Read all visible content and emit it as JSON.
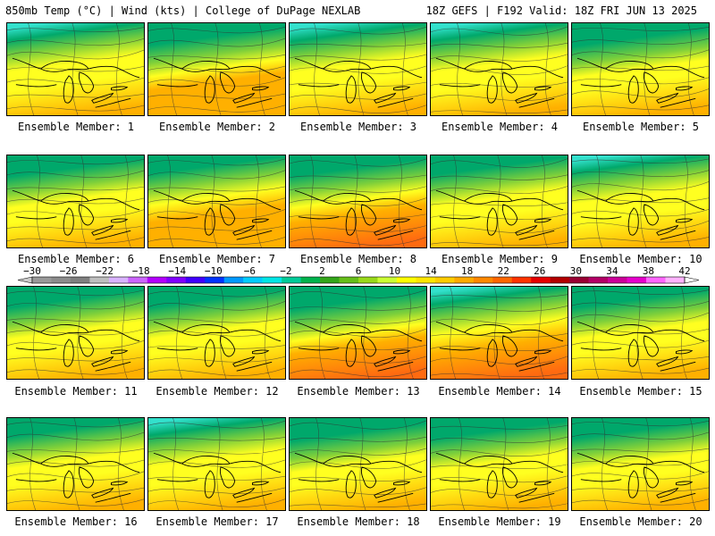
{
  "header": {
    "left": "850mb Temp (°C) | Wind (kts) | College of DuPage NEXLAB",
    "right": "18Z GEFS | F192 Valid: 18Z FRI JUN 13 2025"
  },
  "member_label": "Ensemble Member:",
  "members": [
    {
      "number": "1",
      "north_cold": 0.95,
      "warm": 0.55
    },
    {
      "number": "2",
      "north_cold": 0.45,
      "warm": 0.75
    },
    {
      "number": "3",
      "north_cold": 0.85,
      "warm": 0.65
    },
    {
      "number": "4",
      "north_cold": 0.9,
      "warm": 0.7
    },
    {
      "number": "5",
      "north_cold": 0.35,
      "warm": 0.55
    },
    {
      "number": "6",
      "north_cold": 0.55,
      "warm": 0.65
    },
    {
      "number": "7",
      "north_cold": 0.8,
      "warm": 0.75
    },
    {
      "number": "8",
      "north_cold": 0.55,
      "warm": 0.8
    },
    {
      "number": "9",
      "north_cold": 0.7,
      "warm": 0.55
    },
    {
      "number": "10",
      "north_cold": 0.95,
      "warm": 0.55
    },
    {
      "number": "11",
      "north_cold": 0.55,
      "warm": 0.55
    },
    {
      "number": "12",
      "north_cold": 0.6,
      "warm": 0.65
    },
    {
      "number": "13",
      "north_cold": 0.35,
      "warm": 0.8
    },
    {
      "number": "14",
      "north_cold": 0.9,
      "warm": 0.85
    },
    {
      "number": "15",
      "north_cold": 0.55,
      "warm": 0.7
    },
    {
      "number": "16",
      "north_cold": 0.75,
      "warm": 0.5
    },
    {
      "number": "17",
      "north_cold": 0.95,
      "warm": 0.55
    },
    {
      "number": "18",
      "north_cold": 0.35,
      "warm": 0.65
    },
    {
      "number": "19",
      "north_cold": 0.55,
      "warm": 0.55
    },
    {
      "number": "20",
      "north_cold": 0.6,
      "warm": 0.7
    }
  ],
  "colorbar": {
    "labels": [
      "−30",
      "−26",
      "−22",
      "−18",
      "−14",
      "−10",
      "−6",
      "−2",
      "2",
      "6",
      "10",
      "14",
      "18",
      "22",
      "26",
      "30",
      "34",
      "38",
      "42"
    ],
    "colors": [
      "#999999",
      "#8c8c8c",
      "#808080",
      "#bfbfbf",
      "#d9b3ff",
      "#cc66ff",
      "#b300ff",
      "#8000ff",
      "#4000ff",
      "#0033ff",
      "#0099ff",
      "#00ccff",
      "#00e6e6",
      "#00cc99",
      "#00b34d",
      "#33a61a",
      "#66bf1a",
      "#99d91a",
      "#ccff33",
      "#ffff00",
      "#ffe600",
      "#ffcc00",
      "#ffaa00",
      "#ff8800",
      "#ff6600",
      "#ff3300",
      "#e60000",
      "#b30000",
      "#990033",
      "#b30066",
      "#cc0099",
      "#e600cc",
      "#ff66ff",
      "#ffb3ff"
    ]
  },
  "palette": {
    "cold": "#00a86b",
    "cool": "#7fd03a",
    "mild": "#ffff20",
    "warm": "#ffb000",
    "hot": "#ff6a10",
    "cyan": "#33e0cc"
  }
}
